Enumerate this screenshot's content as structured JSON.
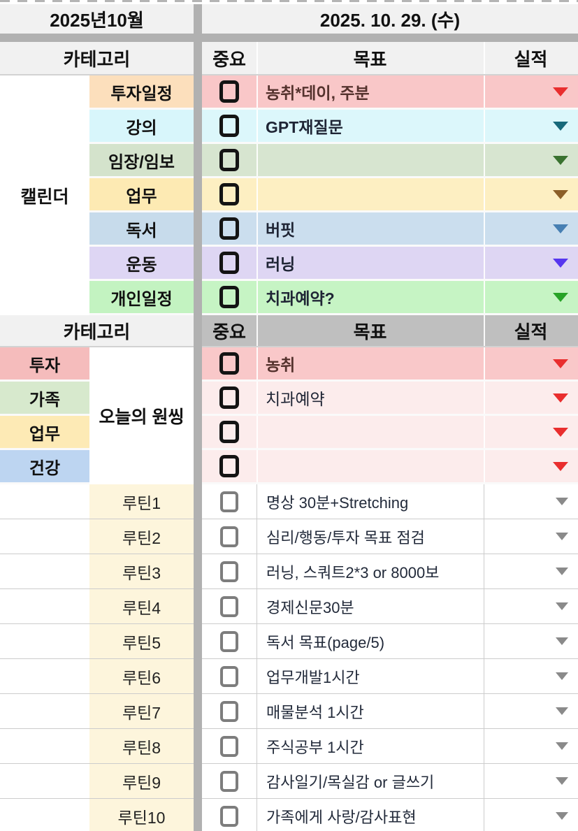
{
  "palette": {
    "divider_band": "#b1b1b1",
    "header_light_bg": "#f1f1f1",
    "header_dark_bg": "#bfbfbf"
  },
  "top": {
    "month": "2025년10월",
    "date": "2025. 10. 29. (수)"
  },
  "headers": {
    "category": "카테고리",
    "important": "중요",
    "goal": "목표",
    "result": "실적"
  },
  "calendar_section": {
    "span_label": "캘린더",
    "rows": [
      {
        "label": "투자일정",
        "goal": "농취*데이, 주분",
        "label_bg": "#fcdfbc",
        "row_bg": "#f9c7c8",
        "goal_color": "#54322d",
        "tri_color": "#e92e2e"
      },
      {
        "label": "강의",
        "goal": "GPT재질문",
        "label_bg": "#d8f6fb",
        "row_bg": "#dcf7fb",
        "tri_color": "#17697a"
      },
      {
        "label": "임장/임보",
        "goal": "",
        "label_bg": "#d4e3cc",
        "row_bg": "#d7e5d0",
        "tri_color": "#3a7230"
      },
      {
        "label": "업무",
        "goal": "",
        "label_bg": "#fdeab3",
        "row_bg": "#fdefc2",
        "tri_color": "#8c5f28"
      },
      {
        "label": "독서",
        "goal": "버핏",
        "label_bg": "#c7dbeb",
        "row_bg": "#cbdeee",
        "tri_color": "#477fb3"
      },
      {
        "label": "운동",
        "goal": "러닝",
        "label_bg": "#ded6f4",
        "row_bg": "#ded6f3",
        "tri_color": "#5636ef"
      },
      {
        "label": "개인일정",
        "goal": "치과예약?",
        "label_bg": "#c3f3c1",
        "row_bg": "#c6f4c4",
        "tri_color": "#27a327"
      }
    ]
  },
  "onething_section": {
    "span_label": "오늘의 원씽",
    "categories": [
      {
        "label": "투자",
        "bg": "#f5bcbc"
      },
      {
        "label": "가족",
        "bg": "#d7e9cd"
      },
      {
        "label": "업무",
        "bg": "#fdeab5"
      },
      {
        "label": "건강",
        "bg": "#bdd5f1"
      }
    ],
    "rows": [
      {
        "goal": "농취",
        "row_bg": "#f9c8c9",
        "goal_color": "#54322d",
        "tri_color": "#e92e2e"
      },
      {
        "goal": "치과예약",
        "row_bg": "#fcecec",
        "tri_color": "#e92e2e"
      },
      {
        "goal": "",
        "row_bg": "#fcecec",
        "tri_color": "#e92e2e"
      },
      {
        "goal": "",
        "row_bg": "#fcecec",
        "tri_color": "#e92e2e"
      }
    ]
  },
  "routine_section": {
    "label_bg": "#fdf5dc",
    "tri_color": "#8a8a8a",
    "rows": [
      {
        "label": "루틴1",
        "goal": "명상 30분+Stretching"
      },
      {
        "label": "루틴2",
        "goal": "심리/행동/투자 목표 점검"
      },
      {
        "label": "루틴3",
        "goal": "러닝, 스쿼트2*3 or 8000보"
      },
      {
        "label": "루틴4",
        "goal": "경제신문30분"
      },
      {
        "label": "루틴5",
        "goal": "독서 목표(page/5)"
      },
      {
        "label": "루틴6",
        "goal": "업무개발1시간"
      },
      {
        "label": "루틴7",
        "goal": "매물분석 1시간"
      },
      {
        "label": "루틴8",
        "goal": "주식공부 1시간"
      },
      {
        "label": "루틴9",
        "goal": "감사일기/목실감 or 글쓰기"
      },
      {
        "label": "루틴10",
        "goal": "가족에게 사랑/감사표현"
      }
    ]
  }
}
